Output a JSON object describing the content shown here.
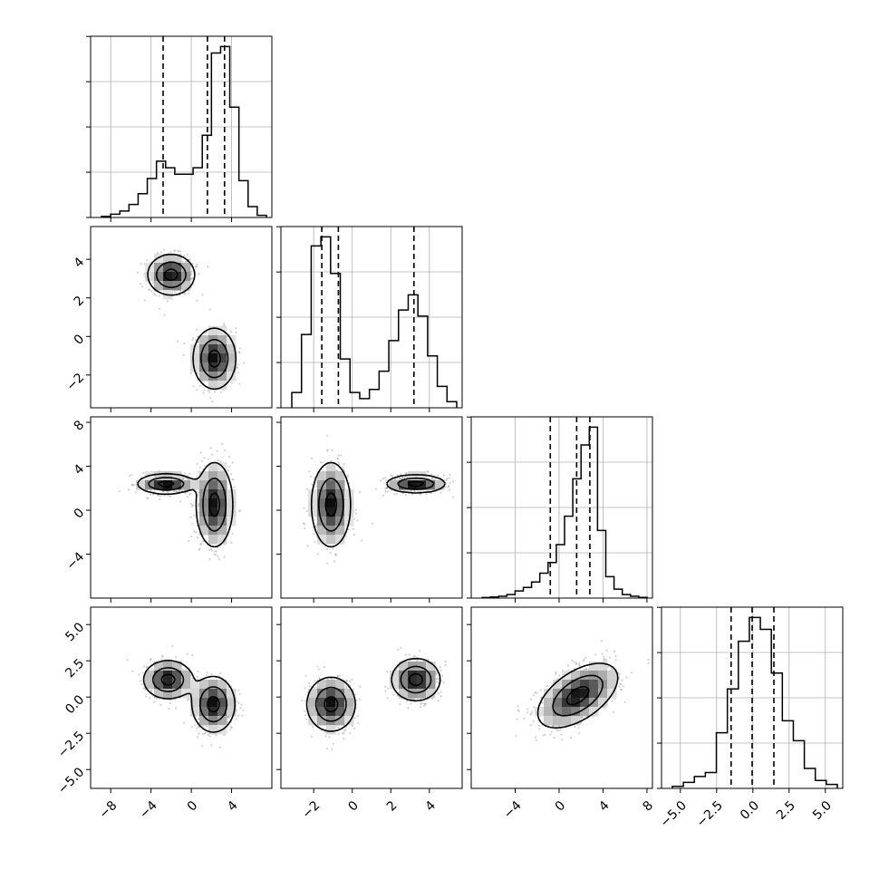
{
  "chart_data": {
    "type": "corner",
    "title": "",
    "parameters": [
      {
        "id": "p0",
        "range": [
          -10,
          8
        ],
        "ticks": [
          -8,
          -4,
          0,
          4
        ],
        "tick_labels": [
          "−8",
          "−4",
          "0",
          "4"
        ]
      },
      {
        "id": "p1",
        "range": [
          -3.7,
          5.7
        ],
        "ticks": [
          -2,
          0,
          2,
          4
        ],
        "tick_labels": [
          "−2",
          "0",
          "2",
          "4"
        ]
      },
      {
        "id": "p2",
        "range": [
          -8,
          8.5
        ],
        "ticks": [
          -4,
          0,
          4,
          8
        ],
        "tick_labels": [
          "−4",
          "0",
          "4",
          "8"
        ]
      },
      {
        "id": "p3",
        "range": [
          -6.3,
          6.2
        ],
        "ticks": [
          -5,
          -2.5,
          0,
          2.5,
          5
        ],
        "tick_labels": [
          "−5.0",
          "−2.5",
          "0.0",
          "2.5",
          "5.0"
        ]
      }
    ],
    "histograms": [
      {
        "param": "p0",
        "quantiles": [
          -2.8,
          1.6,
          3.3
        ],
        "counts": [
          0.5,
          1.5,
          3,
          6,
          11,
          18,
          26,
          23,
          20,
          20,
          23,
          38,
          76,
          79,
          51,
          17,
          5,
          1
        ]
      },
      {
        "param": "p1",
        "quantiles": [
          -1.58,
          -0.72,
          3.2
        ],
        "counts": [
          5,
          24,
          53,
          56,
          44,
          16,
          5,
          3,
          6,
          12,
          22,
          32,
          37,
          30,
          17,
          7,
          2
        ]
      },
      {
        "param": "p2",
        "quantiles": [
          -0.8,
          1.6,
          2.8
        ],
        "counts": [
          0.3,
          0.6,
          1,
          2,
          4,
          6,
          9,
          14,
          20,
          30,
          46,
          67,
          86,
          96,
          38,
          12,
          5,
          2,
          1,
          0.4
        ]
      },
      {
        "param": "p3",
        "quantiles": [
          -1.5,
          -0.05,
          1.45
        ],
        "counts": [
          0.5,
          1.5,
          3,
          4,
          14,
          25,
          37,
          43,
          40,
          29,
          17,
          12,
          5,
          2,
          1
        ]
      }
    ],
    "pairs": [
      {
        "x": "p0",
        "y": "p1",
        "modes": [
          {
            "cx": -2.0,
            "cy": 3.2,
            "sx": 1.15,
            "sy": 0.52,
            "rho": 0
          },
          {
            "cx": 2.3,
            "cy": -1.15,
            "sx": 1.05,
            "sy": 0.78,
            "rho": 0
          }
        ]
      },
      {
        "x": "p0",
        "y": "p2",
        "modes": [
          {
            "cx": -2.5,
            "cy": 2.4,
            "sx": 1.4,
            "sy": 0.45,
            "rho": 0
          },
          {
            "cx": 2.3,
            "cy": 0.5,
            "sx": 0.9,
            "sy": 1.9,
            "rho": 0
          }
        ]
      },
      {
        "x": "p0",
        "y": "p3",
        "modes": [
          {
            "cx": -2.3,
            "cy": 1.2,
            "sx": 1.2,
            "sy": 0.65,
            "rho": 0
          },
          {
            "cx": 2.2,
            "cy": -0.5,
            "sx": 1.05,
            "sy": 0.95,
            "rho": 0
          }
        ]
      },
      {
        "x": "p1",
        "y": "p2",
        "modes": [
          {
            "cx": -1.1,
            "cy": 0.5,
            "sx": 0.5,
            "sy": 1.9,
            "rho": 0
          },
          {
            "cx": 3.3,
            "cy": 2.4,
            "sx": 0.75,
            "sy": 0.4,
            "rho": 0
          }
        ]
      },
      {
        "x": "p1",
        "y": "p3",
        "modes": [
          {
            "cx": -1.1,
            "cy": -0.5,
            "sx": 0.62,
            "sy": 0.92,
            "rho": 0
          },
          {
            "cx": 3.3,
            "cy": 1.2,
            "sx": 0.62,
            "sy": 0.72,
            "rho": 0
          }
        ]
      },
      {
        "x": "p2",
        "y": "p3",
        "modes": [
          {
            "cx": 1.7,
            "cy": 0.1,
            "sx": 1.8,
            "sy": 1.1,
            "rho": 0.55
          }
        ]
      }
    ],
    "grid": true,
    "legend": "none"
  }
}
